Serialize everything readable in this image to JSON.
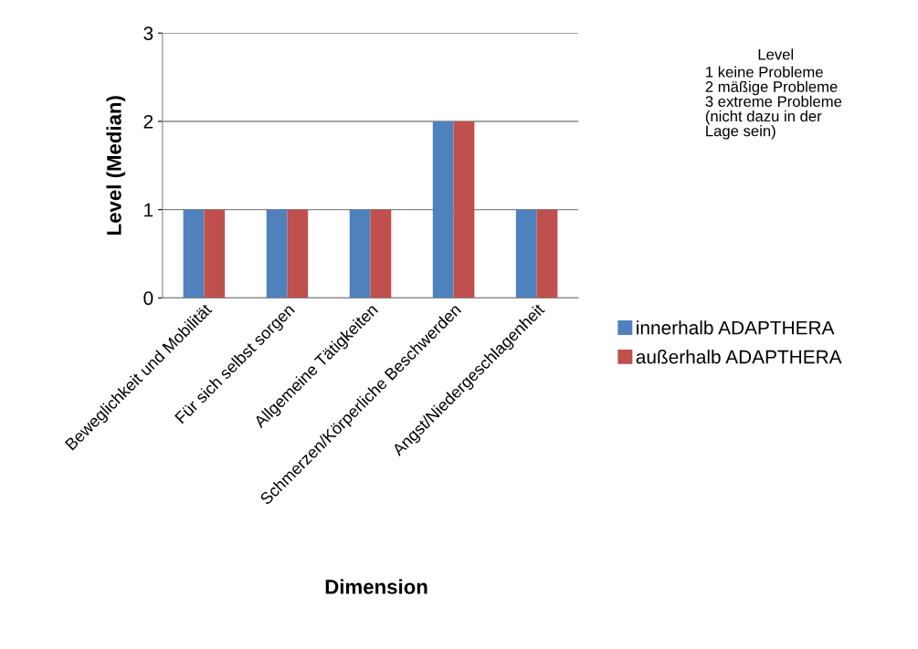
{
  "chart_data": {
    "type": "bar",
    "xlabel": "Dimension",
    "ylabel": "Level (Median)",
    "categories": [
      "Beweglichkeit und Mobilität",
      "Für sich selbst sorgen",
      "Allgemeine Tätigkeiten",
      "Schmerzen/Körperliche Beschwerden",
      "Angst/Niedergeschlagenheit"
    ],
    "series": [
      {
        "name": "innerhalb ADAPTHERA",
        "color": "#4f81bd",
        "values": [
          1,
          1,
          1,
          2,
          1
        ]
      },
      {
        "name": "außerhalb ADAPTHERA",
        "color": "#c0504d",
        "values": [
          1,
          1,
          1,
          2,
          1
        ]
      }
    ],
    "ylim": [
      0,
      3
    ],
    "yticks": [
      0,
      1,
      2,
      3
    ],
    "grid": "y",
    "legend": "right",
    "annotations": [
      "Level",
      "1 keine Probleme\n2 mäßige Probleme\n3 extreme Probleme\n(nicht dazu in der\nLage sein)"
    ]
  }
}
